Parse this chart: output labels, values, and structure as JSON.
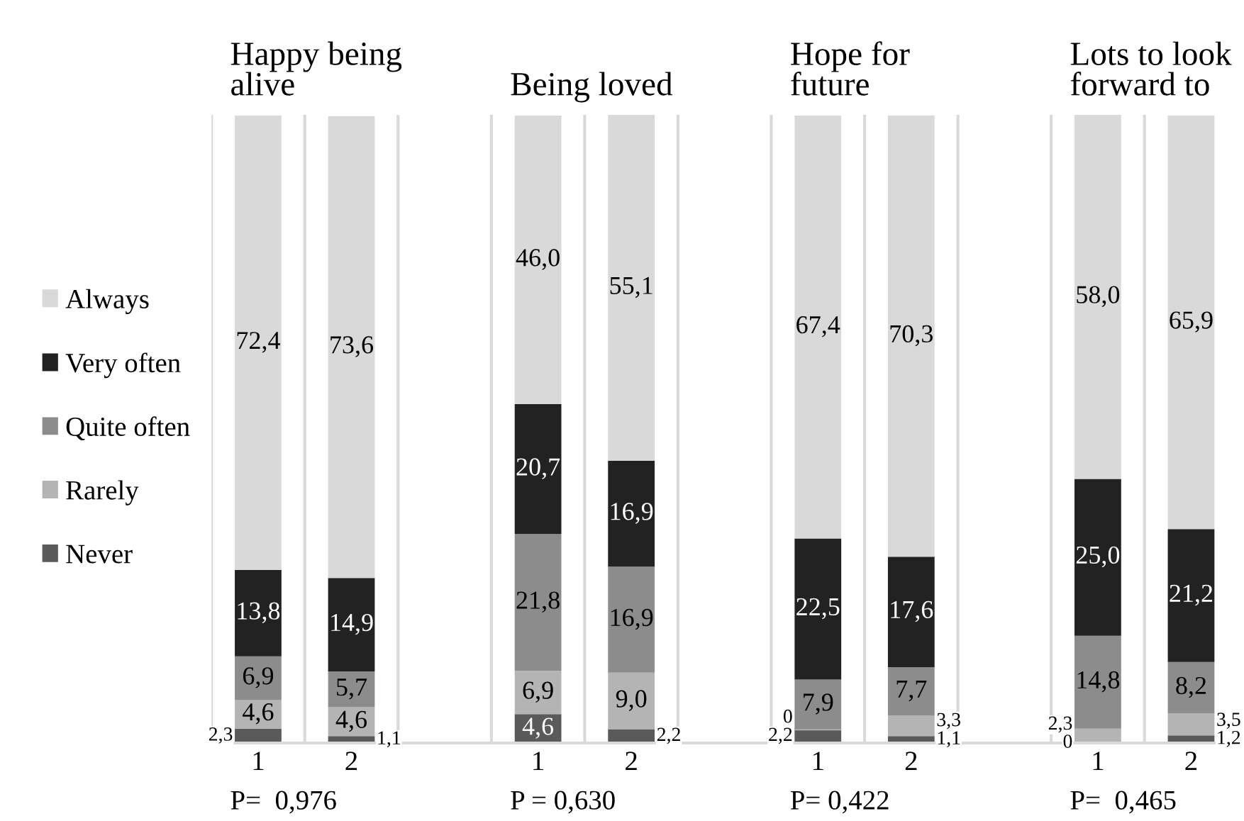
{
  "chart_data": {
    "type": "bar",
    "stacked": true,
    "data_labels": true,
    "grid": "x",
    "legend": "left",
    "categories": [
      "1",
      "2",
      null,
      "1",
      "2",
      null,
      "1",
      "2",
      null,
      "1",
      "2"
    ],
    "series": [
      {
        "name": "Never",
        "color": "#5a5a5a",
        "values": [
          2.3,
          1.1,
          null,
          4.6,
          2.2,
          null,
          2.2,
          1.1,
          null,
          0,
          1.2
        ],
        "value_labels": [
          "2,3",
          "1,1",
          null,
          "4,6",
          "2,2",
          null,
          "2,2",
          "1,1",
          null,
          "0",
          "1,2"
        ]
      },
      {
        "name": "Rarely",
        "color": "#b4b4b4",
        "values": [
          4.6,
          4.6,
          null,
          6.9,
          9.0,
          null,
          0,
          3.3,
          null,
          2.3,
          3.5
        ],
        "value_labels": [
          "4,6",
          "4,6",
          null,
          "6,9",
          "9,0",
          null,
          "0",
          "3,3",
          null,
          "2,3",
          "3,5"
        ]
      },
      {
        "name": "Quite often",
        "color": "#8c8c8c",
        "values": [
          6.9,
          5.7,
          null,
          21.8,
          16.9,
          null,
          7.9,
          7.7,
          null,
          14.8,
          8.2
        ],
        "value_labels": [
          "6,9",
          "5,7",
          null,
          "21,8",
          "16,9",
          null,
          "7,9",
          "7,7",
          null,
          "14,8",
          "8,2"
        ]
      },
      {
        "name": "Very often",
        "color": "#222222",
        "values": [
          13.8,
          14.9,
          null,
          20.7,
          16.9,
          null,
          22.5,
          17.6,
          null,
          25.0,
          21.2
        ],
        "value_labels": [
          "13,8",
          "14,9",
          null,
          "20,7",
          "16,9",
          null,
          "22,5",
          "17,6",
          null,
          "25,0",
          "21,2"
        ]
      },
      {
        "name": "Always",
        "color": "#d9d9d9",
        "values": [
          72.4,
          73.6,
          null,
          46.0,
          55.1,
          null,
          67.4,
          70.3,
          null,
          58.0,
          65.9
        ],
        "value_labels": [
          "72,4",
          "73,6",
          null,
          "46,0",
          "55,1",
          null,
          "67,4",
          "70,3",
          null,
          "58,0",
          "65,9"
        ]
      }
    ],
    "annotations": [
      "Happy being\nalive",
      "Being loved",
      "Hope for\nfuture",
      "Lots to look\nforward to",
      "P=  0,976",
      "P = 0,630",
      "P= 0,422",
      "P=  0,465"
    ]
  }
}
